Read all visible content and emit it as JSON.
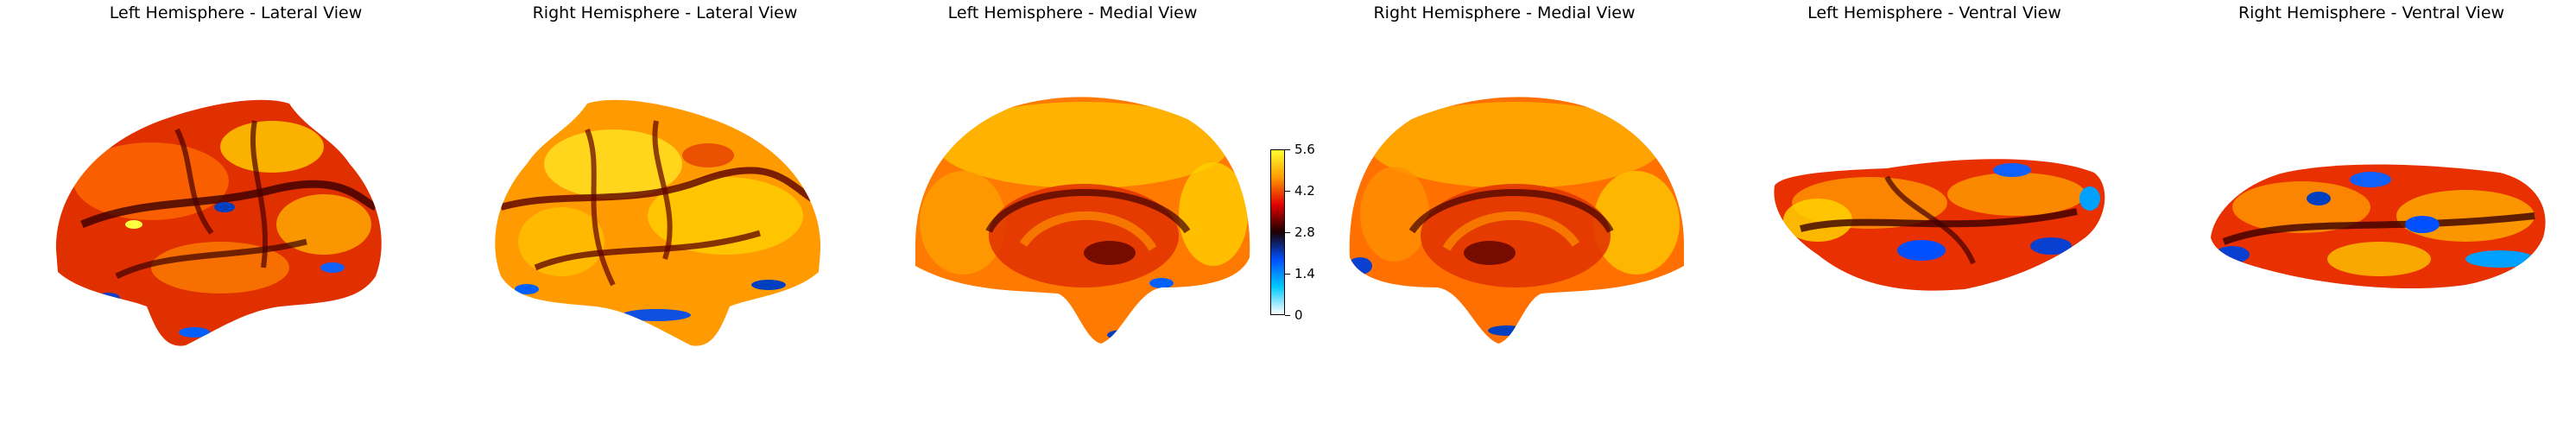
{
  "views": [
    {
      "id": "lh-lateral",
      "title": "Left Hemisphere - Lateral View"
    },
    {
      "id": "rh-lateral",
      "title": "Right Hemisphere - Lateral View"
    },
    {
      "id": "lh-medial",
      "title": "Left Hemisphere - Medial View"
    },
    {
      "id": "rh-medial",
      "title": "Right Hemisphere - Medial View"
    },
    {
      "id": "lh-ventral",
      "title": "Left Hemisphere - Ventral View"
    },
    {
      "id": "rh-ventral",
      "title": "Right Hemisphere - Ventral View"
    }
  ],
  "colorbar": {
    "colormap": "blue-black-red-yellow (cold-hot)",
    "ticks": [
      "5.6",
      "4.2",
      "2.8",
      "1.4",
      "0"
    ],
    "colors": [
      "#ffff30",
      "#ff9a00",
      "#e00000",
      "#1a0000",
      "#0050ff",
      "#00c8ff",
      "#ffffff"
    ]
  },
  "surface_colors": {
    "dominant": "#e83000",
    "hot": "#ffd000",
    "sulcus": "#400000",
    "cold": "#1060ff"
  }
}
